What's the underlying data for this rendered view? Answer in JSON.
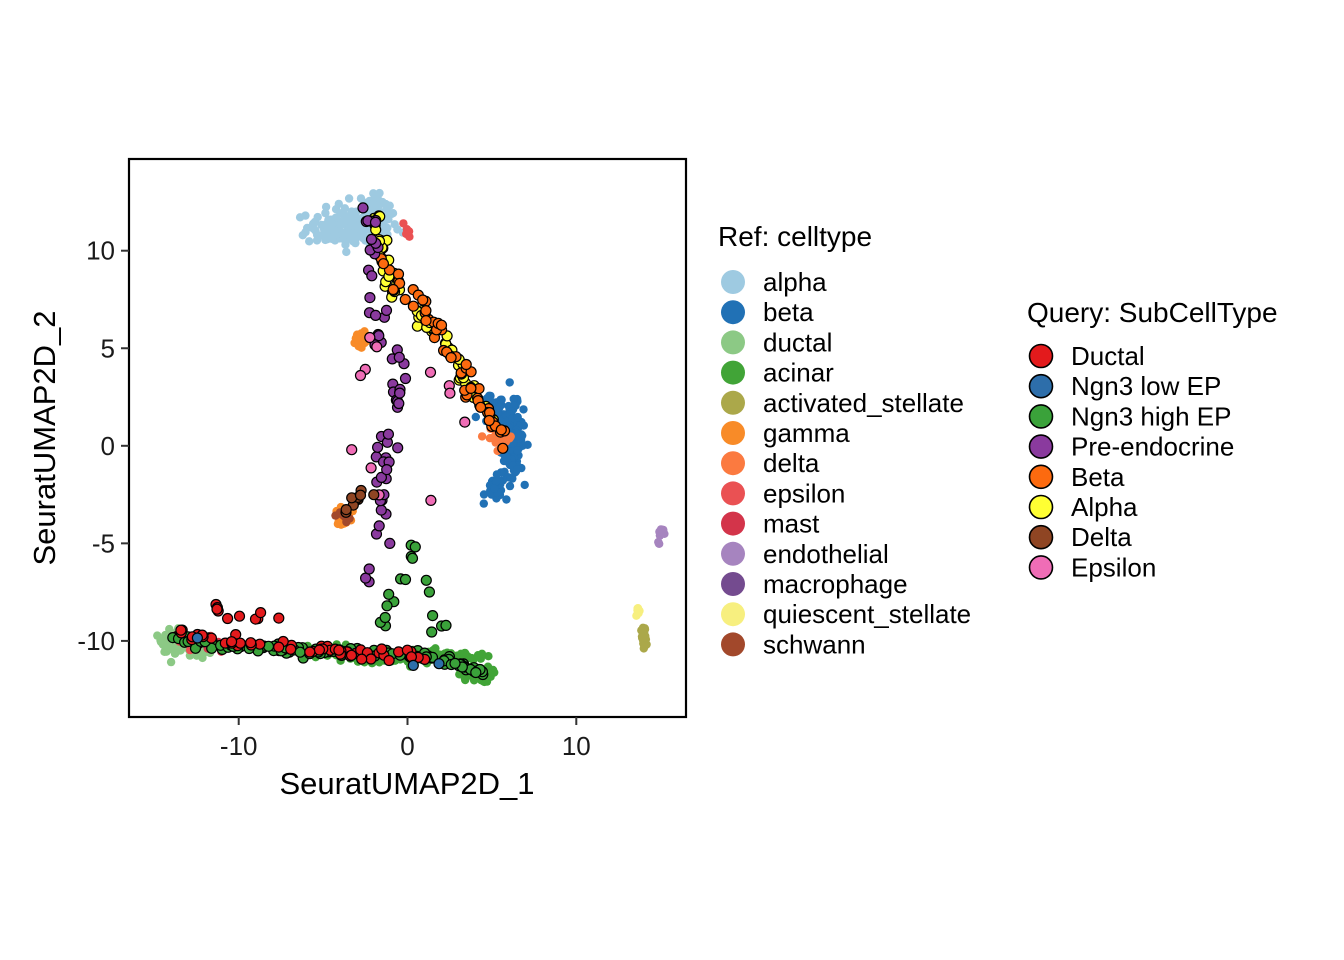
{
  "chart_data": {
    "type": "scatter",
    "title": "",
    "xlabel": "SeuratUMAP2D_1",
    "ylabel": "SeuratUMAP2D_2",
    "xlim": [
      -16.5,
      16.5
    ],
    "ylim": [
      -13.9,
      14.7
    ],
    "x_ticks": [
      -10,
      0,
      10
    ],
    "y_ticks": [
      -10,
      -5,
      0,
      5,
      10
    ],
    "grid": false,
    "legend_placement": "right",
    "ref_legend": {
      "title": "Ref: celltype",
      "items": [
        {
          "name": "alpha",
          "color": "#9ecae1"
        },
        {
          "name": "beta",
          "color": "#2171b5"
        },
        {
          "name": "ductal",
          "color": "#8cc985"
        },
        {
          "name": "acinar",
          "color": "#41a437"
        },
        {
          "name": "activated_stellate",
          "color": "#aba84a"
        },
        {
          "name": "gamma",
          "color": "#f88b28"
        },
        {
          "name": "delta",
          "color": "#fb7a40"
        },
        {
          "name": "epsilon",
          "color": "#ea5153"
        },
        {
          "name": "mast",
          "color": "#d3344a"
        },
        {
          "name": "endothelial",
          "color": "#a684bf"
        },
        {
          "name": "macrophage",
          "color": "#744b8f"
        },
        {
          "name": "quiescent_stellate",
          "color": "#f7ef7f"
        },
        {
          "name": "schwann",
          "color": "#a2482b"
        }
      ]
    },
    "query_legend": {
      "title": "Query: SubCellType",
      "items": [
        {
          "name": "Ductal",
          "color": "#e31a1c"
        },
        {
          "name": "Ngn3 low EP",
          "color": "#2d6eaa"
        },
        {
          "name": "Ngn3 high EP",
          "color": "#3aa23a"
        },
        {
          "name": "Pre-endocrine",
          "color": "#8a3a9e"
        },
        {
          "name": "Beta",
          "color": "#fc6a0f"
        },
        {
          "name": "Alpha",
          "color": "#ffff33"
        },
        {
          "name": "Delta",
          "color": "#8f4523"
        },
        {
          "name": "Epsilon",
          "color": "#ef6db6"
        }
      ]
    },
    "ref_clusters": [
      {
        "celltype": "alpha",
        "n": 170,
        "cx": -3.2,
        "cy": 11.2,
        "sx": 2.3,
        "sy": 0.8
      },
      {
        "celltype": "alpha",
        "n": 40,
        "cx": -2.0,
        "cy": 12.4,
        "sx": 0.7,
        "sy": 0.4
      },
      {
        "celltype": "beta",
        "n": 170,
        "cx": 6.2,
        "cy": 0.3,
        "sx": 0.55,
        "sy": 1.5
      },
      {
        "celltype": "beta",
        "n": 40,
        "cx": 5.0,
        "cy": 1.8,
        "sx": 0.6,
        "sy": 0.6
      },
      {
        "celltype": "beta",
        "n": 30,
        "cx": 5.2,
        "cy": -2.2,
        "sx": 0.5,
        "sy": 0.5
      },
      {
        "celltype": "ductal",
        "n": 90,
        "cx": -13.8,
        "cy": -10.0,
        "sx": 0.6,
        "sy": 0.45
      },
      {
        "celltype": "ductal",
        "n": 50,
        "cx": -12.4,
        "cy": -10.4,
        "sx": 0.7,
        "sy": 0.35
      },
      {
        "celltype": "acinar",
        "n": 170,
        "cx": 0.5,
        "cy": -10.8,
        "sx": 3.0,
        "sy": 0.3
      },
      {
        "celltype": "acinar",
        "n": 60,
        "cx": 4.0,
        "cy": -11.7,
        "sx": 0.8,
        "sy": 0.35
      },
      {
        "celltype": "acinar",
        "n": 50,
        "cx": -5.0,
        "cy": -10.5,
        "sx": 1.6,
        "sy": 0.25
      },
      {
        "celltype": "activated_stellate",
        "n": 30,
        "cx": 14.0,
        "cy": -9.9,
        "sx": 0.12,
        "sy": 0.5
      },
      {
        "celltype": "gamma",
        "n": 40,
        "cx": -2.8,
        "cy": 5.5,
        "sx": 0.25,
        "sy": 0.3
      },
      {
        "celltype": "gamma",
        "n": 40,
        "cx": -3.8,
        "cy": -3.6,
        "sx": 0.35,
        "sy": 0.35
      },
      {
        "celltype": "delta",
        "n": 40,
        "cx": 5.5,
        "cy": 0.4,
        "sx": 0.6,
        "sy": 0.35
      },
      {
        "celltype": "epsilon",
        "n": 5,
        "cx": -0.2,
        "cy": 11.0,
        "sx": 0.3,
        "sy": 0.4
      },
      {
        "celltype": "epsilon",
        "n": 12,
        "cx": -12.5,
        "cy": -10.0,
        "sx": 1.2,
        "sy": 0.3
      },
      {
        "celltype": "mast",
        "n": 10,
        "cx": -10.5,
        "cy": -10.3,
        "sx": 1.0,
        "sy": 0.3
      },
      {
        "celltype": "endothelial",
        "n": 14,
        "cx": 15.1,
        "cy": -4.4,
        "sx": 0.18,
        "sy": 0.12
      },
      {
        "celltype": "endothelial",
        "n": 3,
        "cx": 14.9,
        "cy": -5.0,
        "sx": 0.05,
        "sy": 0.05
      },
      {
        "celltype": "quiescent_stellate",
        "n": 8,
        "cx": 13.7,
        "cy": -8.5,
        "sx": 0.08,
        "sy": 0.2
      },
      {
        "celltype": "schwann",
        "n": 10,
        "cx": -3.7,
        "cy": -3.6,
        "sx": 0.25,
        "sy": 0.25
      }
    ],
    "query_paths": [
      {
        "subtype": "Alpha",
        "n": 65,
        "pts": [
          [
            -2.1,
            11.9
          ],
          [
            -1.5,
            10.0
          ],
          [
            -1.3,
            8.5
          ],
          [
            0.0,
            7.3
          ],
          [
            1.5,
            6.2
          ],
          [
            2.8,
            4.6
          ],
          [
            3.5,
            3.2
          ],
          [
            4.5,
            1.8
          ],
          [
            5.2,
            0.8
          ]
        ],
        "jitter": 0.45
      },
      {
        "subtype": "Beta",
        "n": 55,
        "pts": [
          [
            -1.5,
            9.5
          ],
          [
            -0.8,
            8.5
          ],
          [
            0.5,
            7.5
          ],
          [
            2.0,
            5.5
          ],
          [
            3.5,
            3.5
          ],
          [
            5.2,
            0.7
          ],
          [
            6.0,
            0.3
          ]
        ],
        "jitter": 0.45
      },
      {
        "subtype": "Pre-endocrine",
        "n": 60,
        "pts": [
          [
            -2.2,
            11.7
          ],
          [
            -2.3,
            10.0
          ],
          [
            -2.0,
            8.0
          ],
          [
            -1.8,
            6.0
          ],
          [
            -0.8,
            4.5
          ],
          [
            -0.5,
            2.0
          ],
          [
            -1.5,
            -1.5
          ],
          [
            -2.0,
            -5.0
          ],
          [
            -2.5,
            -7.5
          ]
        ],
        "jitter": 0.7
      },
      {
        "subtype": "Ngn3 high EP",
        "n": 120,
        "pts": [
          [
            -14.0,
            -9.8
          ],
          [
            -10.0,
            -10.3
          ],
          [
            -6.0,
            -10.5
          ],
          [
            -2.0,
            -10.6
          ],
          [
            1.0,
            -10.8
          ],
          [
            3.0,
            -11.1
          ],
          [
            4.5,
            -11.8
          ]
        ],
        "jitter": 0.25
      },
      {
        "subtype": "Ngn3 high EP",
        "n": 18,
        "pts": [
          [
            -1.5,
            -9.5
          ],
          [
            -0.5,
            -7.0
          ],
          [
            0.5,
            -5.5
          ],
          [
            2.0,
            -9.8
          ]
        ],
        "jitter": 0.8
      },
      {
        "subtype": "Ductal",
        "n": 55,
        "pts": [
          [
            -14.5,
            -9.5
          ],
          [
            -12.5,
            -9.9
          ],
          [
            -10.0,
            -10.1
          ],
          [
            -7.0,
            -10.4
          ],
          [
            -3.0,
            -10.6
          ],
          [
            1.0,
            -10.8
          ]
        ],
        "jitter": 0.3
      },
      {
        "subtype": "Ductal",
        "n": 10,
        "pts": [
          [
            -11.8,
            -8.2
          ],
          [
            -10.5,
            -8.6
          ],
          [
            -8.5,
            -8.8
          ],
          [
            -7.5,
            -8.7
          ]
        ],
        "jitter": 0.3
      },
      {
        "subtype": "Epsilon",
        "n": 12,
        "pts": [
          [
            -1.2,
            8.4
          ],
          [
            -3.5,
            -0.6
          ],
          [
            -1.0,
            -2.5
          ],
          [
            1.0,
            -8.2
          ],
          [
            1.5,
            3.5
          ],
          [
            4.2,
            0.5
          ]
        ],
        "jitter": 0.6
      },
      {
        "subtype": "Delta",
        "n": 10,
        "pts": [
          [
            -3.6,
            -3.4
          ],
          [
            -2.4,
            -2.0
          ],
          [
            -1.6,
            -2.6
          ]
        ],
        "jitter": 0.35
      },
      {
        "subtype": "Ngn3 low EP",
        "n": 3,
        "pts": [
          [
            -13.5,
            -9.8
          ],
          [
            -8.0,
            -10.5
          ],
          [
            5.2,
            -11.6
          ]
        ],
        "jitter": 0.2
      }
    ]
  }
}
